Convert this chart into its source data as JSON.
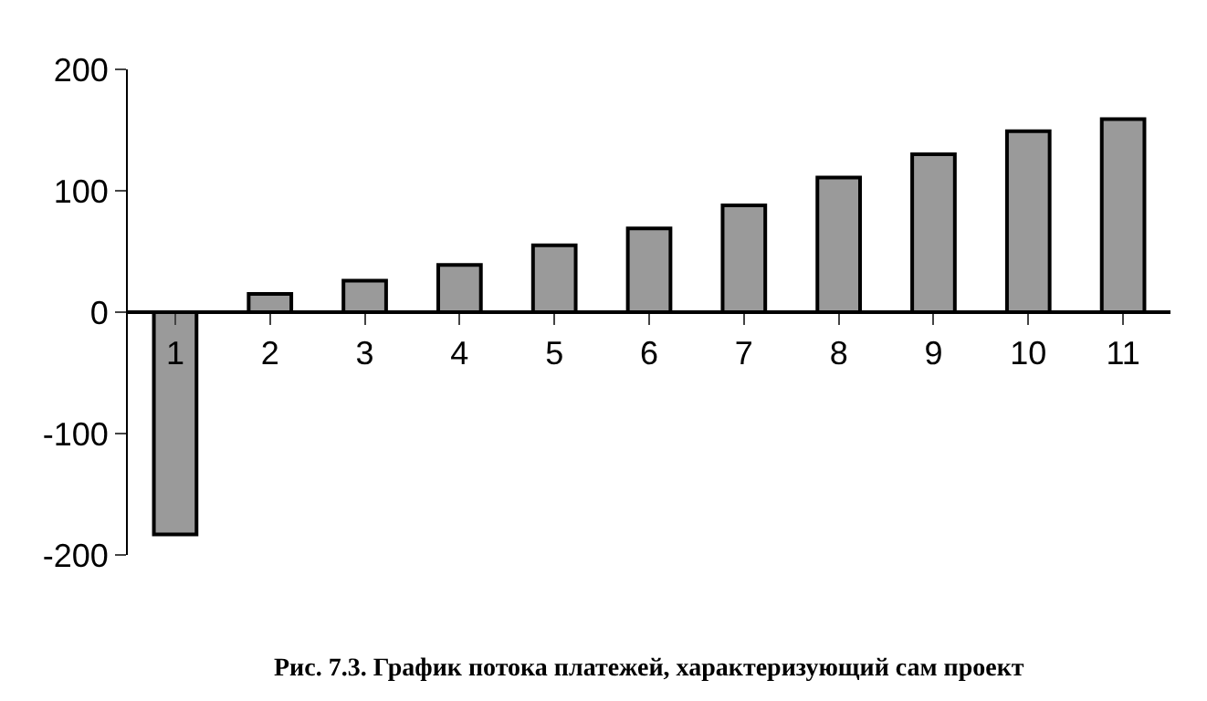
{
  "chart_data": {
    "type": "bar",
    "categories": [
      "1",
      "2",
      "3",
      "4",
      "5",
      "6",
      "7",
      "8",
      "9",
      "10",
      "11"
    ],
    "values": [
      -183,
      15,
      26,
      39,
      55,
      69,
      88,
      111,
      130,
      149,
      159
    ],
    "color": "#9a9a9a",
    "ylim": [
      -200,
      200
    ],
    "yticks": [
      -200,
      -100,
      0,
      100,
      200
    ],
    "annotations": [
      "Рис. 7.3. График потока платежей, характеризующий сам проект"
    ]
  }
}
